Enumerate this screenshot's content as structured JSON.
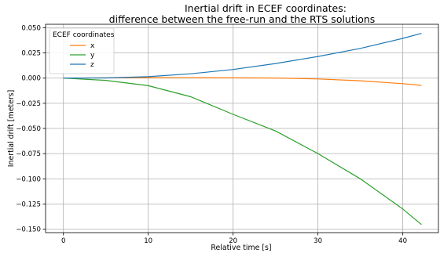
{
  "chart_data": {
    "type": "line",
    "title": "Inertial drift in ECEF coordinates:",
    "subtitle": "difference between the free-run and the RTS solutions",
    "xlabel": "Relative time [s]",
    "ylabel": "Inertial drift [meters]",
    "xlim": [
      -2.1,
      44.2
    ],
    "ylim": [
      -0.1535,
      0.0535
    ],
    "xticks": [
      0,
      10,
      20,
      30,
      40
    ],
    "yticks": [
      0.05,
      0.025,
      0.0,
      -0.025,
      -0.05,
      -0.075,
      -0.1,
      -0.125,
      -0.15
    ],
    "xtick_labels": [
      "0",
      "10",
      "20",
      "30",
      "40"
    ],
    "ytick_labels": [
      "0.050",
      "0.025",
      "0.000",
      "−0.025",
      "−0.050",
      "−0.075",
      "−0.100",
      "−0.125",
      "−0.150"
    ],
    "grid": true,
    "legend": {
      "title": "ECEF coordinates",
      "placement": "upper-left"
    },
    "series": [
      {
        "name": "x",
        "color": "#ff7f0e",
        "x": [
          0,
          5,
          10,
          15,
          20,
          25,
          30,
          35,
          40,
          42.2
        ],
        "y": [
          0,
          0.0003,
          0.0005,
          0.0004,
          0.0003,
          0.0001,
          -0.0008,
          -0.0026,
          -0.0055,
          -0.0072
        ]
      },
      {
        "name": "y",
        "color": "#2ca02c",
        "x": [
          0,
          5,
          10,
          15,
          20,
          25,
          30,
          35,
          40,
          42.2
        ],
        "y": [
          0,
          -0.0022,
          -0.0075,
          -0.0185,
          -0.036,
          -0.0525,
          -0.075,
          -0.1,
          -0.13,
          -0.1455
        ]
      },
      {
        "name": "z",
        "color": "#1f77b4",
        "x": [
          0,
          5,
          10,
          15,
          20,
          25,
          30,
          35,
          40,
          42.2
        ],
        "y": [
          0,
          0.0002,
          0.0014,
          0.0043,
          0.0086,
          0.0145,
          0.0215,
          0.0295,
          0.0395,
          0.0445
        ]
      }
    ]
  }
}
